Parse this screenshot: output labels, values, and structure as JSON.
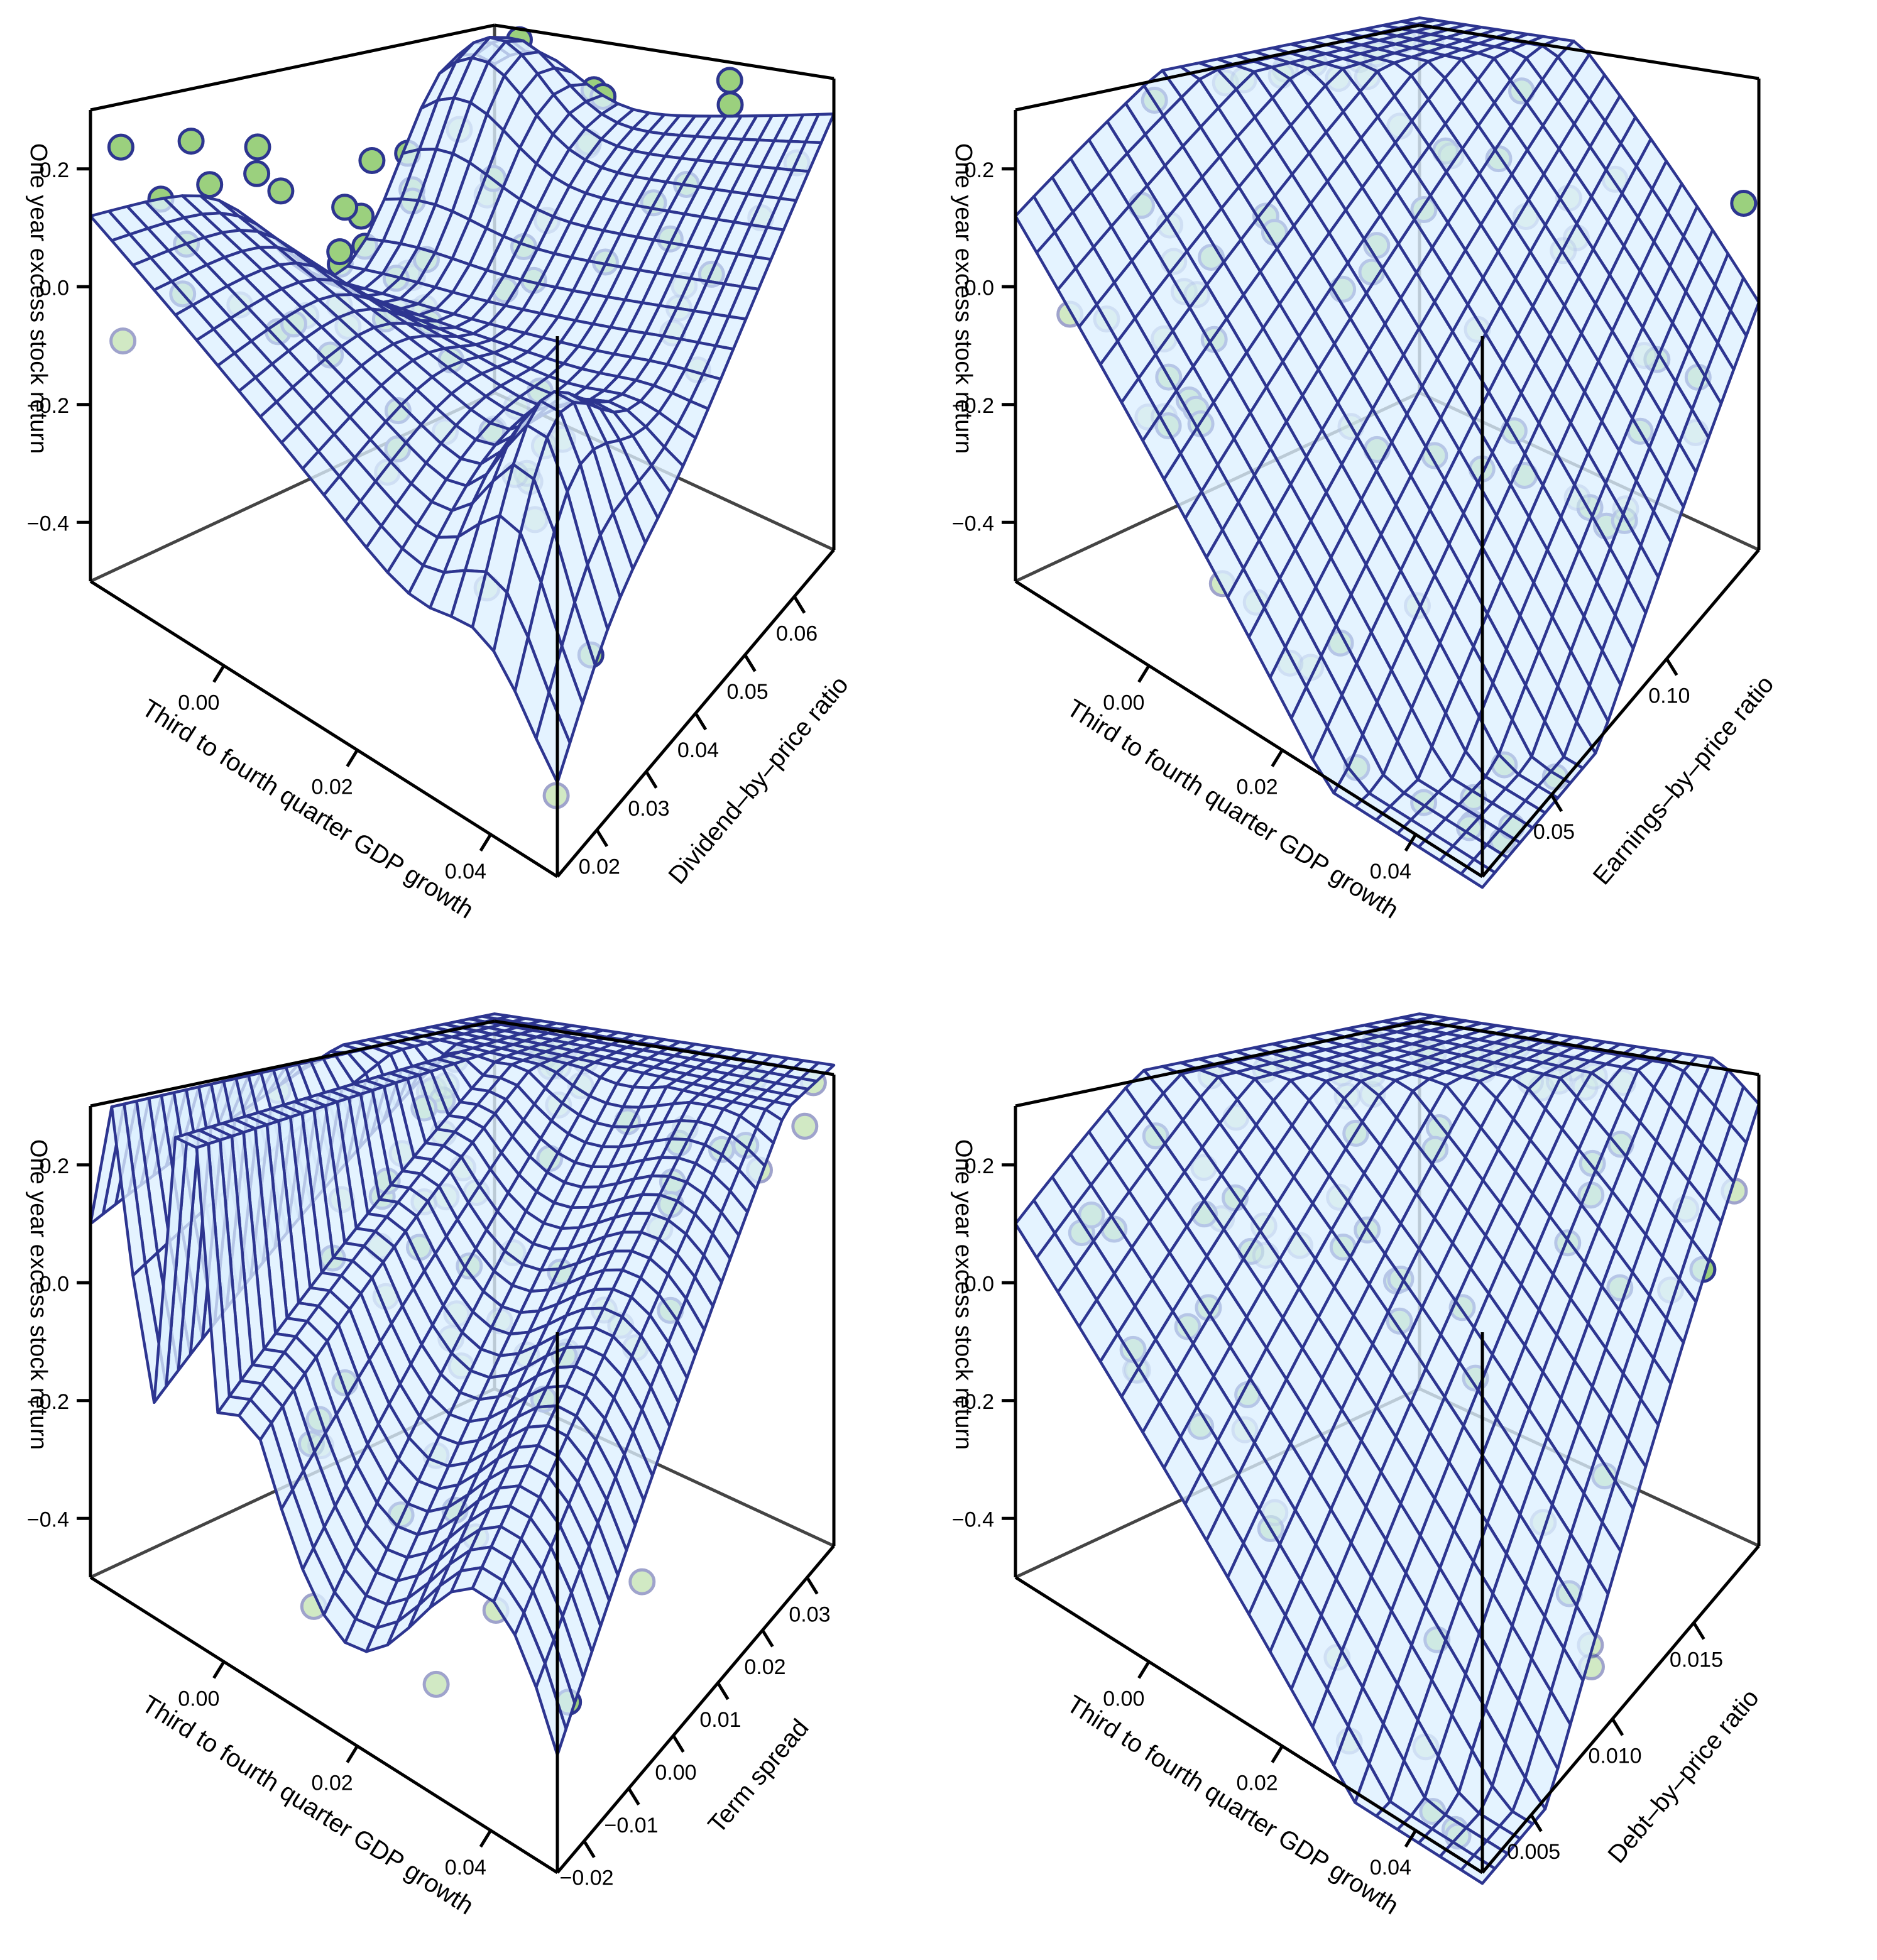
{
  "figure": {
    "colors": {
      "surface_fill": "#dcefff",
      "mesh_line": "#2d3590",
      "point_fill": "#9bd07e",
      "point_stroke": "#2d3590",
      "box_line": "#000000",
      "back_edge": "#444444"
    }
  },
  "chart_data": [
    {
      "type": "scatter3d_surface",
      "id": "top-left",
      "zlabel": "One year excess stock return",
      "xlabel": "Third to fourth quarter GDP growth",
      "ylabel": "Dividend–by–price ratio",
      "z_ticks": [
        "0.2",
        "0.0",
        "−0.2",
        "−0.4"
      ],
      "x_ticks": [
        "0.00",
        "0.02",
        "0.04"
      ],
      "y_ticks": [
        "0.02",
        "0.03",
        "0.04",
        "0.05",
        "0.06"
      ],
      "x_range": [
        -0.02,
        0.05
      ],
      "y_range": [
        0.012,
        0.068
      ],
      "z_range": [
        -0.5,
        0.3
      ],
      "surface": "nonparametric",
      "n_points": 78
    },
    {
      "type": "scatter3d_surface",
      "id": "top-right",
      "zlabel": "One year excess stock return",
      "xlabel": "Third to fourth quarter GDP growth",
      "ylabel": "Earnings–by–price ratio",
      "z_ticks": [
        "0.2",
        "0.0",
        "−0.2",
        "−0.4"
      ],
      "x_ticks": [
        "0.00",
        "0.02",
        "0.04"
      ],
      "y_ticks": [
        "0.05",
        "0.10"
      ],
      "x_range": [
        -0.02,
        0.05
      ],
      "y_range": [
        0.02,
        0.14
      ],
      "z_range": [
        -0.5,
        0.3
      ],
      "surface": "planar",
      "n_points": 78
    },
    {
      "type": "scatter3d_surface",
      "id": "bottom-left",
      "zlabel": "One year excess stock return",
      "xlabel": "Third to fourth quarter GDP growth",
      "ylabel": "Term spread",
      "z_ticks": [
        "0.2",
        "0.0",
        "−0.2",
        "−0.4"
      ],
      "x_ticks": [
        "0.00",
        "0.02",
        "0.04"
      ],
      "y_ticks": [
        "−0.02",
        "−0.01",
        "0.00",
        "0.01",
        "0.02",
        "0.03"
      ],
      "x_range": [
        -0.02,
        0.05
      ],
      "y_range": [
        -0.026,
        0.036
      ],
      "z_range": [
        -0.5,
        0.3
      ],
      "surface": "oscillating",
      "n_points": 78
    },
    {
      "type": "scatter3d_surface",
      "id": "bottom-right",
      "zlabel": "One year excess stock return",
      "xlabel": "Third to fourth quarter GDP growth",
      "ylabel": "Debt–by–price ratio",
      "z_ticks": [
        "0.2",
        "0.0",
        "−0.2",
        "−0.4"
      ],
      "x_ticks": [
        "0.00",
        "0.02",
        "0.04"
      ],
      "y_ticks": [
        "0.005",
        "0.010",
        "0.015"
      ],
      "x_range": [
        -0.02,
        0.05
      ],
      "y_range": [
        0.002,
        0.019
      ],
      "z_range": [
        -0.5,
        0.3
      ],
      "surface": "planar",
      "n_points": 78
    }
  ]
}
